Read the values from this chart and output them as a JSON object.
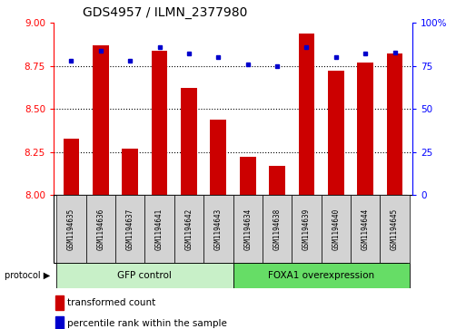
{
  "title": "GDS4957 / ILMN_2377980",
  "samples": [
    "GSM1194635",
    "GSM1194636",
    "GSM1194637",
    "GSM1194641",
    "GSM1194642",
    "GSM1194643",
    "GSM1194634",
    "GSM1194638",
    "GSM1194639",
    "GSM1194640",
    "GSM1194644",
    "GSM1194645"
  ],
  "transformed_count": [
    8.33,
    8.87,
    8.27,
    8.84,
    8.62,
    8.44,
    8.22,
    8.17,
    8.94,
    8.72,
    8.77,
    8.82
  ],
  "percentile_rank": [
    78,
    84,
    78,
    86,
    82,
    80,
    76,
    75,
    86,
    80,
    82,
    83
  ],
  "bar_color": "#cc0000",
  "dot_color": "#0000cc",
  "ylim_left": [
    8.0,
    9.0
  ],
  "ylim_right": [
    0,
    100
  ],
  "yticks_left": [
    8.0,
    8.25,
    8.5,
    8.75,
    9.0
  ],
  "yticks_right": [
    0,
    25,
    50,
    75,
    100
  ],
  "ytick_labels_right": [
    "0",
    "25",
    "50",
    "75",
    "100%"
  ],
  "gridlines": [
    8.25,
    8.5,
    8.75
  ],
  "gfp_color": "#c8f0c8",
  "foxa1_color": "#66dd66",
  "cell_color": "#d3d3d3",
  "bg_color": "#ffffff",
  "bar_width": 0.55
}
